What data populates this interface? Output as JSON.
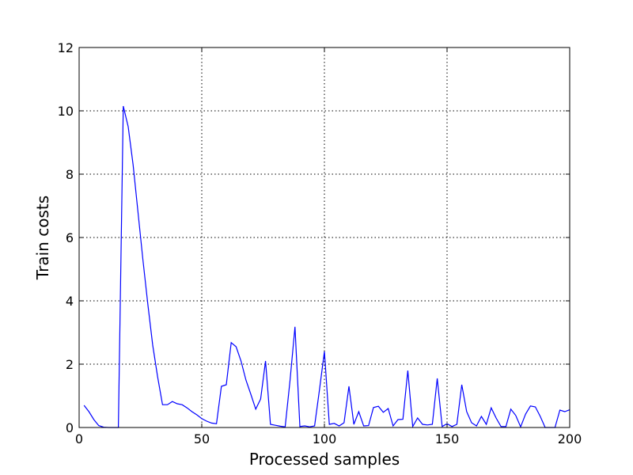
{
  "chart_data": {
    "type": "line",
    "title": "",
    "xlabel": "Processed samples",
    "ylabel": "Train costs",
    "xlim": [
      0,
      200
    ],
    "ylim": [
      0,
      12
    ],
    "xticks": [
      0,
      50,
      100,
      150,
      200
    ],
    "yticks": [
      0,
      2,
      4,
      6,
      8,
      10,
      12
    ],
    "grid": true,
    "legend": "none",
    "series": [
      {
        "color": "#0000ff",
        "x": [
          2,
          4,
          6,
          8,
          10,
          12,
          14,
          16,
          18,
          20,
          22,
          24,
          26,
          28,
          30,
          32,
          34,
          36,
          38,
          40,
          42,
          44,
          46,
          48,
          50,
          52,
          54,
          56,
          58,
          60,
          62,
          64,
          66,
          68,
          70,
          72,
          74,
          76,
          78,
          80,
          82,
          84,
          86,
          88,
          90,
          92,
          94,
          96,
          98,
          100,
          102,
          104,
          106,
          108,
          110,
          112,
          114,
          116,
          118,
          120,
          122,
          124,
          126,
          128,
          130,
          132,
          134,
          136,
          138,
          140,
          142,
          144,
          146,
          148,
          150,
          152,
          154,
          156,
          158,
          160,
          162,
          164,
          166,
          168,
          170,
          172,
          174,
          176,
          178,
          180,
          182,
          184,
          186,
          188,
          190,
          192,
          194,
          196,
          198,
          200
        ],
        "y": [
          0.7,
          0.5,
          0.25,
          0.06,
          0.01,
          0.0,
          0.0,
          0.0,
          10.15,
          9.5,
          8.3,
          6.8,
          5.3,
          3.9,
          2.6,
          1.6,
          0.72,
          0.72,
          0.82,
          0.75,
          0.72,
          0.62,
          0.5,
          0.4,
          0.28,
          0.2,
          0.14,
          0.12,
          1.3,
          1.35,
          2.68,
          2.55,
          2.1,
          1.5,
          1.05,
          0.58,
          0.9,
          2.1,
          0.1,
          0.07,
          0.04,
          0.02,
          1.5,
          3.18,
          0.03,
          0.05,
          0.02,
          0.05,
          1.2,
          2.4,
          0.1,
          0.13,
          0.05,
          0.15,
          1.3,
          0.1,
          0.5,
          0.05,
          0.06,
          0.63,
          0.67,
          0.48,
          0.6,
          0.05,
          0.25,
          0.26,
          1.8,
          0.03,
          0.3,
          0.1,
          0.08,
          0.1,
          1.55,
          0.03,
          0.12,
          0.03,
          0.1,
          1.35,
          0.5,
          0.15,
          0.05,
          0.35,
          0.1,
          0.62,
          0.3,
          0.03,
          0.03,
          0.58,
          0.38,
          0.02,
          0.42,
          0.68,
          0.65,
          0.35,
          0.0,
          0.0,
          0.0,
          0.55,
          0.5,
          0.56
        ]
      }
    ]
  }
}
